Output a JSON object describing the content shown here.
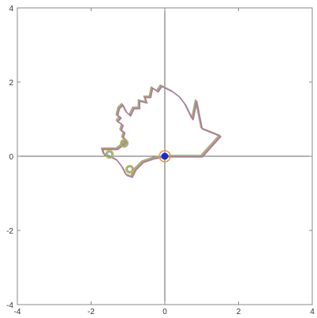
{
  "chart_data": {
    "type": "line",
    "title": "",
    "xlabel": "",
    "ylabel": "",
    "xlim": [
      -4,
      4
    ],
    "ylim": [
      -4,
      4
    ],
    "grid": false,
    "axes_through_origin": true,
    "x_ticks": [
      -4,
      -2,
      0,
      2,
      4
    ],
    "y_ticks": [
      -4,
      -2,
      0,
      2,
      4
    ],
    "x_tick_labels": [
      "-4",
      "-2",
      "0",
      "2",
      "4"
    ],
    "y_tick_labels": [
      "-4",
      "-2",
      "0",
      "2",
      "4"
    ],
    "colors": [
      "#5b9bd5",
      "#e0a030",
      "#9fbf4a",
      "#c86060",
      "#a07cc0"
    ],
    "marker_color": "#1a2bd6",
    "marker_outline": "#e0a030",
    "marker_point": [
      0,
      0
    ],
    "series": [
      {
        "points": [
          [
            0.0,
            0.0
          ],
          [
            0.6,
            0.0
          ],
          [
            1.0,
            0.0
          ],
          [
            1.5,
            0.55
          ],
          [
            1.0,
            0.75
          ],
          [
            0.85,
            1.5
          ],
          [
            0.75,
            1.0
          ],
          [
            0.55,
            1.4
          ],
          [
            0.4,
            1.6
          ],
          [
            0.2,
            1.75
          ],
          [
            0.0,
            1.85
          ],
          [
            -0.1,
            1.9
          ],
          [
            -0.2,
            1.75
          ],
          [
            -0.35,
            1.85
          ],
          [
            -0.4,
            1.6
          ],
          [
            -0.55,
            1.6
          ],
          [
            -0.5,
            1.45
          ],
          [
            -0.7,
            1.5
          ],
          [
            -0.7,
            1.3
          ],
          [
            -0.85,
            1.3
          ],
          [
            -0.95,
            1.1
          ],
          [
            -1.05,
            1.2
          ],
          [
            -1.15,
            1.4
          ],
          [
            -1.25,
            1.3
          ],
          [
            -1.3,
            1.1
          ],
          [
            -1.2,
            1.05
          ],
          [
            -1.3,
            0.95
          ],
          [
            -1.15,
            0.85
          ],
          [
            -1.2,
            0.7
          ],
          [
            -1.1,
            0.65
          ],
          [
            -1.15,
            0.5
          ],
          [
            -1.05,
            0.45
          ],
          [
            -1.1,
            0.35
          ],
          [
            -1.3,
            0.2
          ],
          [
            -1.5,
            0.2
          ],
          [
            -1.7,
            0.2
          ],
          [
            -1.65,
            0.05
          ],
          [
            -1.5,
            0.0
          ],
          [
            -1.3,
            -0.1
          ],
          [
            -1.15,
            -0.3
          ],
          [
            -1.05,
            -0.5
          ],
          [
            -0.9,
            -0.55
          ],
          [
            -0.8,
            -0.35
          ],
          [
            -0.6,
            -0.15
          ],
          [
            -0.3,
            -0.05
          ],
          [
            0.0,
            0.0
          ]
        ]
      }
    ]
  }
}
